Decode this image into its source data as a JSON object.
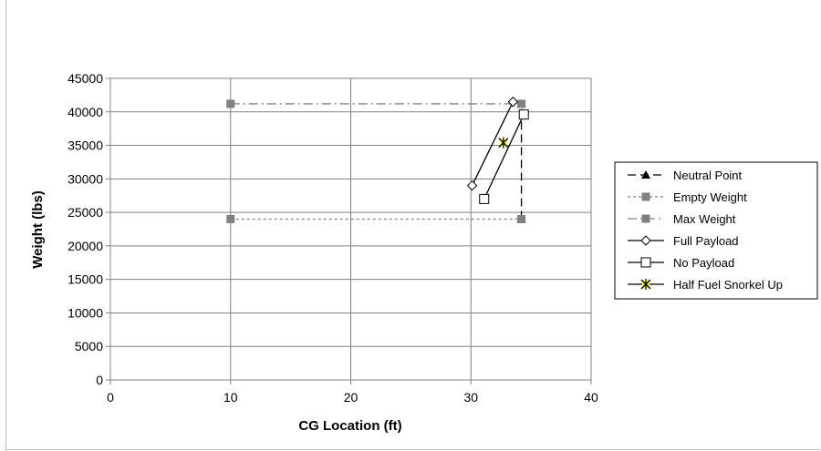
{
  "chart_data": {
    "type": "scatter",
    "title": "",
    "xlabel": "CG Location (ft)",
    "ylabel": "Weight (lbs)",
    "xlim": [
      0,
      40
    ],
    "ylim": [
      0,
      45000
    ],
    "xticks": [
      "0",
      "10",
      "20",
      "30",
      "40"
    ],
    "yticks": [
      "0",
      "5000",
      "10000",
      "15000",
      "20000",
      "25000",
      "30000",
      "35000",
      "40000",
      "45000"
    ],
    "grid": true,
    "legend_position": "right",
    "series": [
      {
        "name": "Neutral Point",
        "marker": "triangle",
        "line": "longdash",
        "color": "#000000",
        "x": [
          34.2,
          34.2
        ],
        "y": [
          24000,
          41200
        ]
      },
      {
        "name": "Empty Weight",
        "marker": "square-filled",
        "line": "dotted",
        "color": "#808080",
        "x": [
          10,
          34.2
        ],
        "y": [
          24000,
          24000
        ]
      },
      {
        "name": "Max Weight",
        "marker": "square-filled",
        "line": "dashdot",
        "color": "#808080",
        "x": [
          10,
          34.2
        ],
        "y": [
          41200,
          41200
        ]
      },
      {
        "name": "Full Payload",
        "marker": "diamond-open",
        "line": "solid",
        "color": "#000000",
        "x": [
          30.1,
          33.5
        ],
        "y": [
          29000,
          41500
        ]
      },
      {
        "name": "No Payload",
        "marker": "square-open",
        "line": "solid",
        "color": "#000000",
        "x": [
          31.1,
          34.4
        ],
        "y": [
          27000,
          39600
        ]
      },
      {
        "name": "Half Fuel Snorkel Up",
        "marker": "star-yellow",
        "line": "solid",
        "color": "#000000",
        "x": [
          32.7
        ],
        "y": [
          35400
        ]
      }
    ]
  }
}
